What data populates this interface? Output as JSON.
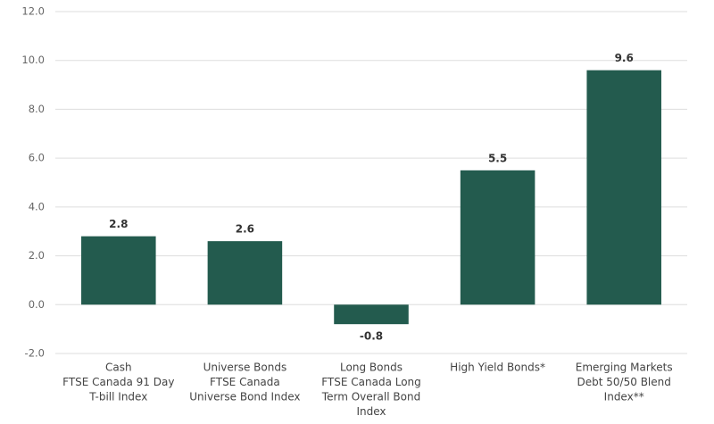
{
  "chart_data": {
    "type": "bar",
    "categories": [
      [
        "Cash",
        "FTSE Canada 91 Day",
        "T-bill Index"
      ],
      [
        "Universe Bonds",
        "FTSE Canada",
        "Universe Bond Index"
      ],
      [
        "Long Bonds",
        "FTSE Canada Long",
        "Term Overall Bond",
        "Index"
      ],
      [
        "High Yield Bonds*"
      ],
      [
        "Emerging Markets",
        "Debt 50/50 Blend",
        "Index**"
      ]
    ],
    "values": [
      2.8,
      2.6,
      -0.8,
      5.5,
      9.6
    ],
    "color": "#235b4e",
    "ylim": [
      -2,
      12
    ],
    "yticks": [
      {
        "value": -2,
        "label": "-2.0"
      },
      {
        "value": 0,
        "label": "0.0"
      },
      {
        "value": 2,
        "label": "2.0"
      },
      {
        "value": 4,
        "label": "4.0"
      },
      {
        "value": 6,
        "label": "6.0"
      },
      {
        "value": 8,
        "label": "8.0"
      },
      {
        "value": 10,
        "label": "10.0"
      },
      {
        "value": 12,
        "label": "12.0"
      }
    ],
    "grid": true
  }
}
